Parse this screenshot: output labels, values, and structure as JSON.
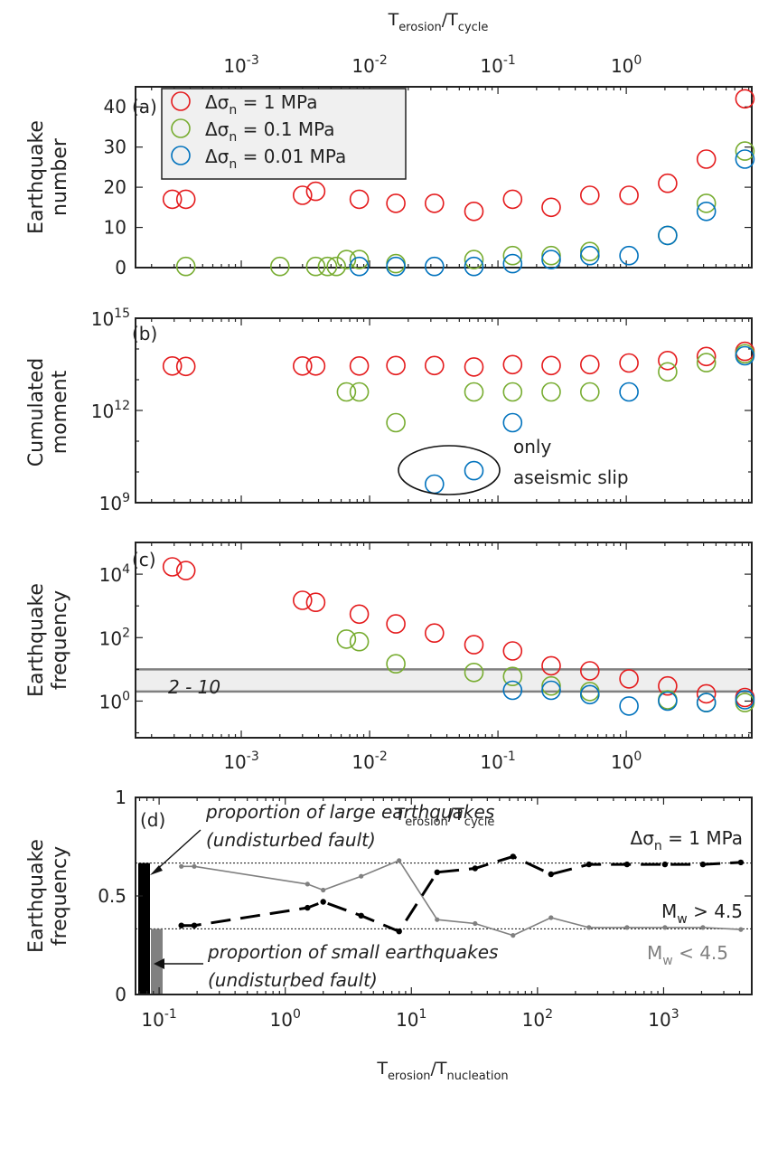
{
  "colors": {
    "red": "#e41a1c",
    "green": "#77ac30",
    "blue": "#0072bd",
    "band": "#eeeeee",
    "band_line": "#808080",
    "black": "#000000",
    "gray": "#808080"
  },
  "chart_data": [
    {
      "id": "a",
      "type": "scatter",
      "panel_label": "(a)",
      "ylabel": [
        "Earthquake",
        "number"
      ],
      "xlabel_top": {
        "main": "T",
        "sub1": "erosion",
        "sep": "/T",
        "sub2": "cycle"
      },
      "x_scale": "log",
      "xlim": [
        0.00015,
        9.5
      ],
      "ylim": [
        0,
        45
      ],
      "x_ticks": [
        {
          "value": 0.001,
          "base": "10",
          "exp": "-3"
        },
        {
          "value": 0.01,
          "base": "10",
          "exp": "-2"
        },
        {
          "value": 0.1,
          "base": "10",
          "exp": "-1"
        },
        {
          "value": 1,
          "base": "10",
          "exp": "0"
        }
      ],
      "y_ticks": [
        {
          "value": 0,
          "label": "0"
        },
        {
          "value": 10,
          "label": "10"
        },
        {
          "value": 20,
          "label": "20"
        },
        {
          "value": 30,
          "label": "30"
        },
        {
          "value": 40,
          "label": "40"
        }
      ],
      "legend": [
        {
          "color_key": "red",
          "label": {
            "pre": "Δσ",
            "sub": "n",
            "post": " = 1 MPa"
          }
        },
        {
          "color_key": "green",
          "label": {
            "pre": "Δσ",
            "sub": "n",
            "post": " = 0.1 MPa"
          }
        },
        {
          "color_key": "blue",
          "label": {
            "pre": "Δσ",
            "sub": "n",
            "post": " = 0.01 MPa"
          }
        }
      ],
      "series": [
        {
          "color_key": "red",
          "x": [
            0.00029,
            0.00037,
            0.003,
            0.0038,
            0.0083,
            0.016,
            0.032,
            0.065,
            0.13,
            0.26,
            0.52,
            1.05,
            2.1,
            4.2,
            8.4
          ],
          "y": [
            17,
            17,
            18,
            19,
            17,
            16,
            16,
            14,
            17,
            15,
            18,
            18,
            21,
            27,
            42
          ]
        },
        {
          "color_key": "green",
          "x": [
            0.00037,
            0.002,
            0.0038,
            0.0047,
            0.0055,
            0.0066,
            0.0083,
            0.016,
            0.065,
            0.13,
            0.26,
            0.52,
            2.1,
            4.2,
            8.4
          ],
          "y": [
            0.3,
            0.3,
            0.3,
            0.3,
            0.3,
            2,
            2,
            1,
            2,
            3,
            3,
            4,
            8,
            16,
            29
          ]
        },
        {
          "color_key": "blue",
          "x": [
            0.0083,
            0.016,
            0.032,
            0.065,
            0.13,
            0.26,
            0.52,
            1.05,
            2.1,
            4.2,
            8.4
          ],
          "y": [
            0.3,
            0.3,
            0.3,
            0.3,
            1,
            2,
            3,
            3,
            8,
            14,
            27
          ]
        }
      ]
    },
    {
      "id": "b",
      "type": "scatter",
      "panel_label": "(b)",
      "ylabel": [
        "Cumulated",
        "moment"
      ],
      "x_scale": "log",
      "y_scale": "log",
      "xlim": [
        0.00015,
        9.5
      ],
      "ylim": [
        1000000000,
        1000000000000000
      ],
      "y_ticks": [
        {
          "value": 1000000000,
          "base": "10",
          "exp": "9"
        },
        {
          "value": 1000000000000,
          "base": "10",
          "exp": "12"
        },
        {
          "value": 1000000000000000,
          "base": "10",
          "exp": "15"
        }
      ],
      "annotation": [
        "only",
        "aseismic slip"
      ],
      "series": [
        {
          "color_key": "red",
          "x": [
            0.00029,
            0.00037,
            0.003,
            0.0038,
            0.0083,
            0.016,
            0.032,
            0.065,
            0.13,
            0.26,
            0.52,
            1.05,
            2.1,
            4.2,
            8.4
          ],
          "y": [
            28000000000000,
            27000000000000,
            28000000000000,
            28000000000000,
            28000000000000,
            29000000000000,
            29000000000000,
            26000000000000,
            31000000000000,
            29000000000000,
            31000000000000,
            35000000000000,
            42000000000000,
            57000000000000,
            84000000000000
          ]
        },
        {
          "color_key": "green",
          "x": [
            0.0066,
            0.0083,
            0.016,
            0.065,
            0.13,
            0.26,
            0.52,
            2.1,
            4.2,
            8.4
          ],
          "y": [
            4000000000000,
            4000000000000,
            400000000000,
            4000000000000,
            4000000000000,
            4000000000000,
            4000000000000,
            18000000000000,
            36000000000000,
            70000000000000
          ]
        },
        {
          "color_key": "blue",
          "x": [
            0.032,
            0.065,
            0.13,
            1.05,
            8.4
          ],
          "y": [
            4000000000,
            11000000000,
            400000000000,
            4000000000000,
            60000000000000
          ]
        }
      ]
    },
    {
      "id": "c",
      "type": "scatter",
      "panel_label": "(c)",
      "ylabel": [
        "Earthquake",
        "frequency"
      ],
      "xlabel": {
        "main": "T",
        "sub1": "erosion",
        "sep": "/T",
        "sub2": "cycle"
      },
      "x_scale": "log",
      "y_scale": "log",
      "xlim": [
        0.00015,
        9.5
      ],
      "ylim": [
        0.07,
        100000
      ],
      "x_ticks": [
        {
          "value": 0.001,
          "base": "10",
          "exp": "-3"
        },
        {
          "value": 0.01,
          "base": "10",
          "exp": "-2"
        },
        {
          "value": 0.1,
          "base": "10",
          "exp": "-1"
        },
        {
          "value": 1,
          "base": "10",
          "exp": "0"
        }
      ],
      "y_ticks": [
        {
          "value": 1,
          "base": "10",
          "exp": "0"
        },
        {
          "value": 100,
          "base": "10",
          "exp": "2"
        },
        {
          "value": 10000,
          "base": "10",
          "exp": "4"
        }
      ],
      "band": {
        "low": 2,
        "high": 10,
        "label": "2 - 10"
      },
      "series": [
        {
          "color_key": "red",
          "x": [
            0.00029,
            0.00037,
            0.003,
            0.0038,
            0.0083,
            0.016,
            0.032,
            0.065,
            0.13,
            0.26,
            0.52,
            1.05,
            2.1,
            4.2,
            8.4
          ],
          "y": [
            17000,
            13000,
            1500,
            1300,
            550,
            270,
            140,
            60,
            38,
            13,
            9,
            5,
            3,
            1.7,
            1.3
          ]
        },
        {
          "color_key": "green",
          "x": [
            0.0066,
            0.0083,
            0.016,
            0.065,
            0.13,
            0.26,
            0.52,
            2.1,
            4.2,
            8.4
          ],
          "y": [
            90,
            75,
            15,
            8,
            6,
            3,
            2,
            1.1,
            0.9,
            0.9
          ]
        },
        {
          "color_key": "blue",
          "x": [
            0.13,
            0.26,
            0.52,
            1.05,
            2.1,
            4.2,
            8.4
          ],
          "y": [
            2.2,
            2.2,
            1.6,
            0.7,
            1.0,
            0.9,
            1.1
          ]
        }
      ]
    },
    {
      "id": "d",
      "type": "line",
      "panel_label": "(d)",
      "ylabel": [
        "Earthquake",
        "frequency"
      ],
      "xlabel": {
        "main": "T",
        "sub1": "erosion",
        "sep": "/T",
        "sub2": "nucleation"
      },
      "x_scale": "log",
      "xlim": [
        0.065,
        5000
      ],
      "ylim": [
        0,
        1
      ],
      "x_ticks": [
        {
          "value": 0.1,
          "base": "10",
          "exp": "-1"
        },
        {
          "value": 1,
          "base": "10",
          "exp": "0"
        },
        {
          "value": 10,
          "base": "10",
          "exp": "1"
        },
        {
          "value": 100,
          "base": "10",
          "exp": "2"
        },
        {
          "value": 1000,
          "base": "10",
          "exp": "3"
        }
      ],
      "y_ticks": [
        {
          "value": 0,
          "label": "0"
        },
        {
          "value": 0.5,
          "label": "0.5"
        },
        {
          "value": 1,
          "label": "1"
        }
      ],
      "title": {
        "pre": "Δσ",
        "sub": "n",
        "post": " = 1 MPa"
      },
      "reference_lines": [
        0.667,
        0.333
      ],
      "reference_bars": [
        {
          "color_key": "black",
          "value": 0.667
        },
        {
          "color_key": "gray",
          "value": 0.333
        }
      ],
      "annotations": {
        "large": [
          "proportion of large earthquakes",
          "(undisturbed fault)"
        ],
        "small": [
          "proportion of small earthquakes",
          "(undisturbed fault)"
        ]
      },
      "series": [
        {
          "name": {
            "pre": "M",
            "sub": "w",
            "post": " > 4.5"
          },
          "color_key": "black",
          "style": "dashed",
          "x": [
            0.15,
            0.19,
            1.5,
            2.0,
            4.0,
            8.0,
            16,
            32,
            64,
            128,
            256,
            512,
            1024,
            2048,
            4096
          ],
          "y": [
            0.35,
            0.35,
            0.44,
            0.47,
            0.4,
            0.32,
            0.62,
            0.64,
            0.7,
            0.61,
            0.66,
            0.66,
            0.66,
            0.66,
            0.67
          ]
        },
        {
          "name": {
            "pre": "M",
            "sub": "w",
            "post": " < 4.5"
          },
          "color_key": "gray",
          "style": "solid",
          "x": [
            0.15,
            0.19,
            1.5,
            2.0,
            4.0,
            8.0,
            16,
            32,
            64,
            128,
            256,
            512,
            1024,
            2048,
            4096
          ],
          "y": [
            0.65,
            0.65,
            0.56,
            0.53,
            0.6,
            0.68,
            0.38,
            0.36,
            0.3,
            0.39,
            0.34,
            0.34,
            0.34,
            0.34,
            0.33
          ]
        }
      ]
    }
  ]
}
